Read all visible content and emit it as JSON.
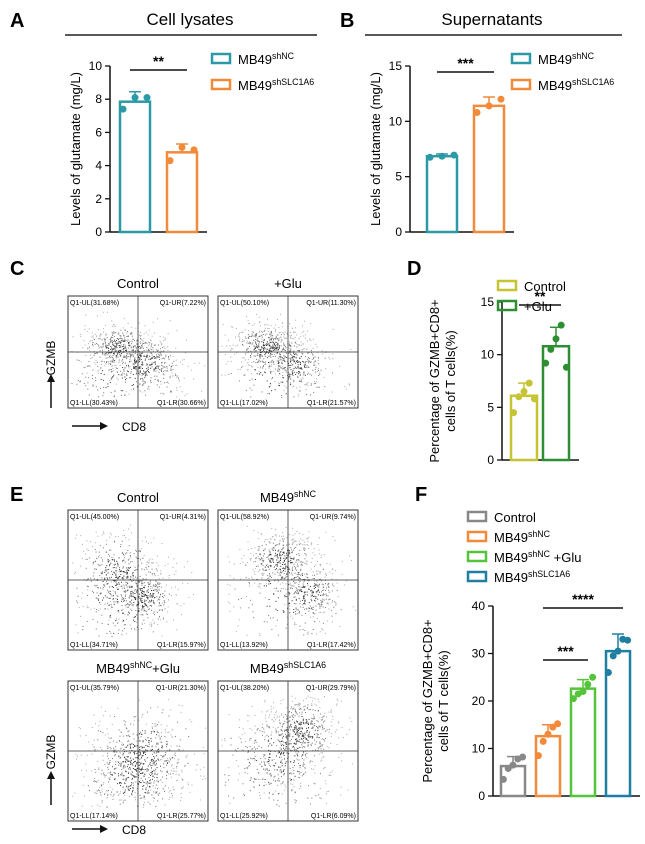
{
  "panel_letters": {
    "A": "A",
    "B": "B",
    "C": "C",
    "D": "D",
    "E": "E",
    "F": "F"
  },
  "colors": {
    "teal": "#2b9aa6",
    "orange": "#f28a3a",
    "olive": "#c6c432",
    "green": "#2e8f32",
    "gray": "#888888",
    "light_green": "#55c43a",
    "dark_teal": "#1f7fa0"
  },
  "flow_axes": {
    "y_label": "GZMB",
    "x_label": "CD8"
  },
  "chart_data": [
    {
      "id": "A",
      "type": "bar",
      "title": "Cell lysates",
      "ylabel": "Levels of glutamate (mg/L)",
      "ylim": [
        0,
        10
      ],
      "yticks": [
        "0",
        "2",
        "4",
        "6",
        "8",
        "10"
      ],
      "categories": [
        "MB49shNC",
        "MB49shSLC1A6"
      ],
      "legend": [
        {
          "base": "MB49",
          "sup": "shNC",
          "color": "#2b9aa6"
        },
        {
          "base": "MB49",
          "sup": "shSLC1A6",
          "color": "#f28a3a"
        }
      ],
      "values": [
        7.85,
        4.8
      ],
      "errors": [
        0.6,
        0.5
      ],
      "points": [
        [
          7.4,
          8.1,
          8.1
        ],
        [
          4.3,
          5.1,
          4.95
        ]
      ],
      "colors": [
        "#2b9aa6",
        "#f28a3a"
      ],
      "significance": [
        {
          "from": 0,
          "to": 1,
          "label": "**"
        }
      ]
    },
    {
      "id": "B",
      "type": "bar",
      "title": "Supernatants",
      "ylabel": "Levels of glutamate (mg/L)",
      "ylim": [
        0,
        15
      ],
      "yticks": [
        "0",
        "5",
        "10",
        "15"
      ],
      "categories": [
        "MB49shNC",
        "MB49shSLC1A6"
      ],
      "legend": [
        {
          "base": "MB49",
          "sup": "shNC",
          "color": "#2b9aa6"
        },
        {
          "base": "MB49",
          "sup": "shSLC1A6",
          "color": "#f28a3a"
        }
      ],
      "values": [
        6.85,
        11.4
      ],
      "errors": [
        0.2,
        0.8
      ],
      "points": [
        [
          6.75,
          6.85,
          6.95
        ],
        [
          10.8,
          11.4,
          12.0
        ]
      ],
      "colors": [
        "#2b9aa6",
        "#f28a3a"
      ],
      "significance": [
        {
          "from": 0,
          "to": 1,
          "label": "***"
        }
      ]
    },
    {
      "id": "D",
      "type": "bar",
      "title": "",
      "ylabel_line1": "Percentage of GZMB+CD8+",
      "ylabel_line2": "cells of T cells(%)",
      "ylim": [
        0,
        15
      ],
      "yticks": [
        "0",
        "5",
        "10",
        "15"
      ],
      "categories": [
        "Control",
        "+Glu"
      ],
      "legend": [
        {
          "base": "Control",
          "sup": "",
          "color": "#c6c432"
        },
        {
          "base": "+Glu",
          "sup": "",
          "color": "#2e8f32"
        }
      ],
      "values": [
        6.1,
        10.8
      ],
      "errors": [
        1.2,
        1.8
      ],
      "points": [
        [
          4.5,
          6.0,
          6.5,
          7.3,
          5.8
        ],
        [
          9.2,
          10.5,
          11.5,
          12.8,
          8.8
        ]
      ],
      "colors": [
        "#c6c432",
        "#2e8f32"
      ],
      "significance": [
        {
          "from": 0,
          "to": 1,
          "label": "**"
        }
      ]
    },
    {
      "id": "F",
      "type": "bar",
      "title": "",
      "ylabel_line1": "Percentage of GZMB+CD8+",
      "ylabel_line2": "cells of T cells(%)",
      "ylim": [
        0,
        40
      ],
      "yticks": [
        "0",
        "10",
        "20",
        "30",
        "40"
      ],
      "categories": [
        "Control",
        "MB49shNC",
        "MB49shNC +Glu",
        "MB49shSLC1A6"
      ],
      "legend": [
        {
          "base": "Control",
          "sup": "",
          "color": "#888888"
        },
        {
          "base": "MB49",
          "sup": "shNC",
          "color": "#f28a3a"
        },
        {
          "base": "MB49",
          "sup": "shNC",
          "suffix": " +Glu",
          "color": "#55c43a"
        },
        {
          "base": "MB49",
          "sup": "shSLC1A6",
          "color": "#1f7fa0"
        }
      ],
      "values": [
        6.3,
        12.6,
        22.6,
        30.5
      ],
      "errors": [
        2.0,
        2.4,
        1.9,
        3.6
      ],
      "points": [
        [
          3.5,
          5.8,
          6.5,
          7.8,
          8.2
        ],
        [
          8.5,
          11.5,
          13.0,
          14.5,
          15.2
        ],
        [
          20.5,
          21.5,
          22.0,
          23.5,
          25.0
        ],
        [
          26.0,
          29.5,
          30.5,
          33.0,
          32.8
        ]
      ],
      "colors": [
        "#888888",
        "#f28a3a",
        "#55c43a",
        "#1f7fa0"
      ],
      "significance": [
        {
          "from": 1,
          "to": 2,
          "label": "***"
        },
        {
          "from": 1,
          "to": 3,
          "label": "****"
        }
      ]
    }
  ],
  "flow_plots": [
    {
      "panel": "C",
      "title": "Control",
      "sup": "",
      "UL": "Q1-UL(31.68%)",
      "UR": "Q1-UR(7.22%)",
      "LL": "Q1-LL(30.43%)",
      "LR": "Q1-LR(30.66%)"
    },
    {
      "panel": "C",
      "title": "+Glu",
      "sup": "",
      "UL": "Q1-UL(50.10%)",
      "UR": "Q1-UR(11.30%)",
      "LL": "Q1-LL(17.02%)",
      "LR": "Q1-LR(21.57%)"
    },
    {
      "panel": "E",
      "title": "Control",
      "sup": "",
      "UL": "Q1-UL(45.00%)",
      "UR": "Q1-UR(4.31%)",
      "LL": "Q1-LL(34.71%)",
      "LR": "Q1-LR(15.97%)"
    },
    {
      "panel": "E",
      "title": "MB49",
      "sup": "shNC",
      "UL": "Q1-UL(58.92%)",
      "UR": "Q1-UR(9.74%)",
      "LL": "Q1-LL(13.92%)",
      "LR": "Q1-LR(17.42%)"
    },
    {
      "panel": "E",
      "title": "MB49",
      "sup": "shNC",
      "suffix": "+Glu",
      "UL": "Q1-UL(35.79%)",
      "UR": "Q1-UR(21.30%)",
      "LL": "Q1-LL(17.14%)",
      "LR": "Q1-LR(25.77%)"
    },
    {
      "panel": "E",
      "title": "MB49",
      "sup": "shSLC1A6",
      "UL": "Q1-UL(38.20%)",
      "UR": "Q1-UR(29.79%)",
      "LL": "Q1-LL(25.92%)",
      "LR": "Q1-LR(6.09%)"
    }
  ]
}
